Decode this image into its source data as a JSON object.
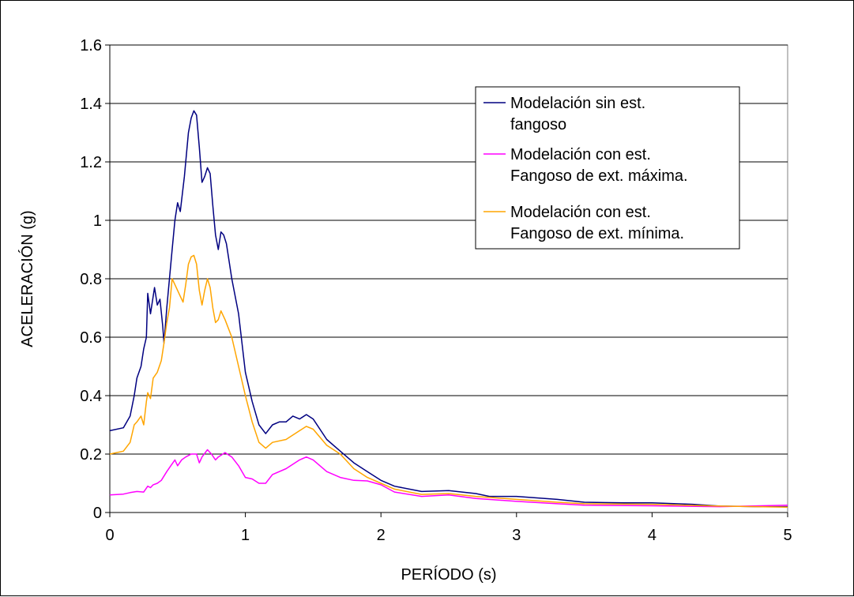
{
  "chart_data": {
    "type": "line",
    "title": "",
    "xlabel": "PERÍODO (s)",
    "ylabel": "ACELERACIÓN (g)",
    "xlim": [
      0,
      5
    ],
    "ylim": [
      0,
      1.6
    ],
    "x_ticks": [
      0,
      1,
      2,
      3,
      4,
      5
    ],
    "y_ticks": [
      0,
      0.2,
      0.4,
      0.6,
      0.8,
      1,
      1.2,
      1.4,
      1.6
    ],
    "x_tick_labels": [
      "0",
      "1",
      "2",
      "3",
      "4",
      "5"
    ],
    "y_tick_labels": [
      "0",
      "0.2",
      "0.4",
      "0.6",
      "0.8",
      "1",
      "1.2",
      "1.4",
      "1.6"
    ],
    "grid": "horizontal",
    "legend_position": "top-right",
    "series": [
      {
        "name_lines": [
          "Modelación sin est.",
          "fangoso"
        ],
        "color": "#000080",
        "points": [
          [
            0,
            0.28
          ],
          [
            0.1,
            0.29
          ],
          [
            0.15,
            0.33
          ],
          [
            0.18,
            0.4
          ],
          [
            0.2,
            0.46
          ],
          [
            0.23,
            0.5
          ],
          [
            0.25,
            0.56
          ],
          [
            0.27,
            0.6
          ],
          [
            0.28,
            0.75
          ],
          [
            0.3,
            0.68
          ],
          [
            0.32,
            0.74
          ],
          [
            0.33,
            0.77
          ],
          [
            0.35,
            0.71
          ],
          [
            0.37,
            0.73
          ],
          [
            0.39,
            0.64
          ],
          [
            0.4,
            0.58
          ],
          [
            0.42,
            0.7
          ],
          [
            0.44,
            0.8
          ],
          [
            0.46,
            0.9
          ],
          [
            0.48,
            1.0
          ],
          [
            0.5,
            1.06
          ],
          [
            0.52,
            1.03
          ],
          [
            0.55,
            1.15
          ],
          [
            0.58,
            1.3
          ],
          [
            0.6,
            1.35
          ],
          [
            0.62,
            1.375
          ],
          [
            0.64,
            1.36
          ],
          [
            0.66,
            1.25
          ],
          [
            0.68,
            1.13
          ],
          [
            0.7,
            1.15
          ],
          [
            0.72,
            1.18
          ],
          [
            0.74,
            1.16
          ],
          [
            0.76,
            1.05
          ],
          [
            0.78,
            0.95
          ],
          [
            0.8,
            0.9
          ],
          [
            0.82,
            0.96
          ],
          [
            0.84,
            0.95
          ],
          [
            0.86,
            0.92
          ],
          [
            0.88,
            0.86
          ],
          [
            0.9,
            0.8
          ],
          [
            0.95,
            0.68
          ],
          [
            1.0,
            0.48
          ],
          [
            1.05,
            0.38
          ],
          [
            1.1,
            0.3
          ],
          [
            1.15,
            0.27
          ],
          [
            1.2,
            0.3
          ],
          [
            1.25,
            0.31
          ],
          [
            1.3,
            0.31
          ],
          [
            1.35,
            0.33
          ],
          [
            1.4,
            0.32
          ],
          [
            1.45,
            0.335
          ],
          [
            1.5,
            0.32
          ],
          [
            1.6,
            0.25
          ],
          [
            1.7,
            0.21
          ],
          [
            1.8,
            0.17
          ],
          [
            1.9,
            0.14
          ],
          [
            2.0,
            0.11
          ],
          [
            2.1,
            0.09
          ],
          [
            2.3,
            0.072
          ],
          [
            2.5,
            0.075
          ],
          [
            2.7,
            0.065
          ],
          [
            2.8,
            0.055
          ],
          [
            3.0,
            0.055
          ],
          [
            3.3,
            0.045
          ],
          [
            3.5,
            0.035
          ],
          [
            3.8,
            0.033
          ],
          [
            4.0,
            0.033
          ],
          [
            4.3,
            0.028
          ],
          [
            4.5,
            0.022
          ],
          [
            4.8,
            0.02
          ],
          [
            5.0,
            0.02
          ]
        ]
      },
      {
        "name_lines": [
          "Modelación con est.",
          "Fangoso de ext. máxima."
        ],
        "color": "#ff00ff",
        "points": [
          [
            0,
            0.06
          ],
          [
            0.1,
            0.063
          ],
          [
            0.15,
            0.068
          ],
          [
            0.2,
            0.072
          ],
          [
            0.25,
            0.07
          ],
          [
            0.28,
            0.09
          ],
          [
            0.3,
            0.085
          ],
          [
            0.32,
            0.095
          ],
          [
            0.35,
            0.1
          ],
          [
            0.38,
            0.11
          ],
          [
            0.42,
            0.14
          ],
          [
            0.45,
            0.16
          ],
          [
            0.48,
            0.18
          ],
          [
            0.5,
            0.16
          ],
          [
            0.53,
            0.18
          ],
          [
            0.56,
            0.19
          ],
          [
            0.6,
            0.2
          ],
          [
            0.64,
            0.2
          ],
          [
            0.66,
            0.17
          ],
          [
            0.68,
            0.19
          ],
          [
            0.72,
            0.215
          ],
          [
            0.75,
            0.2
          ],
          [
            0.78,
            0.18
          ],
          [
            0.8,
            0.19
          ],
          [
            0.85,
            0.205
          ],
          [
            0.9,
            0.19
          ],
          [
            0.95,
            0.16
          ],
          [
            1.0,
            0.12
          ],
          [
            1.05,
            0.115
          ],
          [
            1.1,
            0.1
          ],
          [
            1.15,
            0.1
          ],
          [
            1.2,
            0.13
          ],
          [
            1.3,
            0.15
          ],
          [
            1.4,
            0.18
          ],
          [
            1.45,
            0.19
          ],
          [
            1.5,
            0.18
          ],
          [
            1.6,
            0.14
          ],
          [
            1.7,
            0.12
          ],
          [
            1.8,
            0.11
          ],
          [
            1.9,
            0.108
          ],
          [
            2.0,
            0.095
          ],
          [
            2.1,
            0.07
          ],
          [
            2.3,
            0.055
          ],
          [
            2.5,
            0.06
          ],
          [
            2.7,
            0.048
          ],
          [
            3.0,
            0.038
          ],
          [
            3.3,
            0.03
          ],
          [
            3.5,
            0.025
          ],
          [
            4.0,
            0.023
          ],
          [
            4.5,
            0.02
          ],
          [
            5.0,
            0.025
          ]
        ]
      },
      {
        "name_lines": [
          "Modelación con est.",
          "Fangoso de ext. mínima."
        ],
        "color": "#ffa500",
        "points": [
          [
            0,
            0.2
          ],
          [
            0.1,
            0.21
          ],
          [
            0.15,
            0.24
          ],
          [
            0.18,
            0.3
          ],
          [
            0.2,
            0.31
          ],
          [
            0.23,
            0.33
          ],
          [
            0.25,
            0.3
          ],
          [
            0.27,
            0.38
          ],
          [
            0.28,
            0.41
          ],
          [
            0.3,
            0.39
          ],
          [
            0.32,
            0.46
          ],
          [
            0.35,
            0.48
          ],
          [
            0.38,
            0.52
          ],
          [
            0.4,
            0.58
          ],
          [
            0.42,
            0.65
          ],
          [
            0.44,
            0.7
          ],
          [
            0.46,
            0.8
          ],
          [
            0.48,
            0.78
          ],
          [
            0.5,
            0.76
          ],
          [
            0.52,
            0.74
          ],
          [
            0.54,
            0.72
          ],
          [
            0.56,
            0.78
          ],
          [
            0.58,
            0.85
          ],
          [
            0.6,
            0.875
          ],
          [
            0.62,
            0.88
          ],
          [
            0.64,
            0.85
          ],
          [
            0.66,
            0.76
          ],
          [
            0.68,
            0.71
          ],
          [
            0.7,
            0.76
          ],
          [
            0.72,
            0.8
          ],
          [
            0.74,
            0.77
          ],
          [
            0.76,
            0.7
          ],
          [
            0.78,
            0.65
          ],
          [
            0.8,
            0.66
          ],
          [
            0.82,
            0.69
          ],
          [
            0.85,
            0.66
          ],
          [
            0.9,
            0.6
          ],
          [
            0.95,
            0.5
          ],
          [
            1.0,
            0.4
          ],
          [
            1.05,
            0.31
          ],
          [
            1.1,
            0.24
          ],
          [
            1.15,
            0.22
          ],
          [
            1.2,
            0.24
          ],
          [
            1.3,
            0.25
          ],
          [
            1.4,
            0.28
          ],
          [
            1.45,
            0.295
          ],
          [
            1.5,
            0.285
          ],
          [
            1.6,
            0.23
          ],
          [
            1.7,
            0.2
          ],
          [
            1.8,
            0.15
          ],
          [
            1.9,
            0.12
          ],
          [
            2.0,
            0.1
          ],
          [
            2.1,
            0.08
          ],
          [
            2.3,
            0.062
          ],
          [
            2.5,
            0.065
          ],
          [
            2.7,
            0.055
          ],
          [
            3.0,
            0.045
          ],
          [
            3.3,
            0.035
          ],
          [
            3.5,
            0.03
          ],
          [
            4.0,
            0.028
          ],
          [
            4.5,
            0.022
          ],
          [
            5.0,
            0.018
          ]
        ]
      }
    ]
  }
}
